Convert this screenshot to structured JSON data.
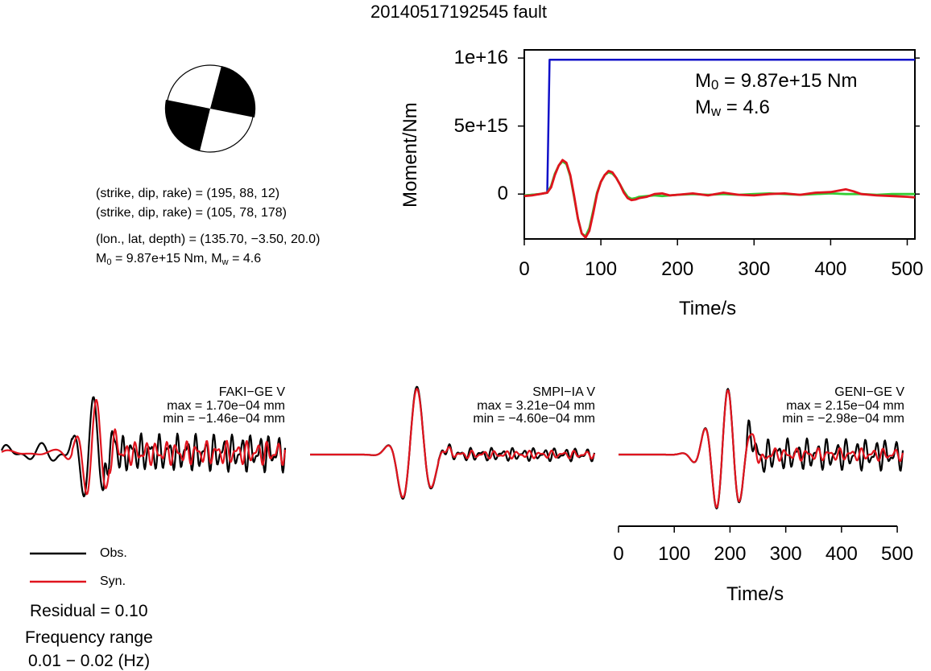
{
  "title": "20140517192545 fault",
  "params": {
    "line1": "(strike, dip, rake) = (195, 88, 12)",
    "line2": "(strike, dip, rake) = (105, 78, 178)",
    "line3": "(lon., lat, depth) = (135.70, −3.50, 20.0)",
    "m0_label": "M",
    "m0_sub": "0",
    "m0_value": " = 9.87e+15 Nm, M",
    "mw_sub": "w",
    "mw_value": " = 4.6"
  },
  "colors": {
    "obs": "#000000",
    "syn": "#e0141e",
    "moment": "#1010c8",
    "rate_green": "#33cc33"
  },
  "chart_data": [
    {
      "type": "line",
      "ylabel": "Moment/Nm",
      "xlabel": "Time/s",
      "xlim": [
        0,
        510
      ],
      "ylim": [
        -3300000000000000.0,
        1.06e+16
      ],
      "xticks": [
        "0",
        "100",
        "200",
        "300",
        "400",
        "500"
      ],
      "yticks": [
        "1e+16",
        "5e+15",
        "0"
      ],
      "annot_m0": "M",
      "annot_m0_sub": "0",
      "annot_m0_val": " = 9.87e+15 Nm",
      "annot_mw": "M",
      "annot_mw_sub": "w",
      "annot_mw_val": " = 4.6",
      "series": [
        {
          "x": [
            0,
            20,
            30,
            33,
            38,
            510
          ],
          "y": [
            -100000000000000.0,
            0,
            100000000000000.0,
            9870000000000000.0,
            9870000000000000.0,
            9870000000000000.0
          ]
        },
        {
          "x": [
            0,
            10,
            20,
            25,
            30,
            35,
            40,
            45,
            50,
            55,
            60,
            65,
            70,
            75,
            80,
            85,
            90,
            95,
            100,
            105,
            110,
            115,
            120,
            125,
            130,
            135,
            140,
            145,
            150,
            160,
            170,
            180,
            190,
            200,
            220,
            240,
            260,
            280,
            300,
            320,
            340,
            360,
            380,
            400,
            420,
            440,
            460,
            480,
            500,
            510
          ],
          "y": [
            -100000000000000.0,
            -50000000000000.0,
            0,
            50000000000000.0,
            100000000000000.0,
            600000000000000.0,
            1500000000000000.0,
            2100000000000000.0,
            2400000000000000.0,
            2200000000000000.0,
            1300000000000000.0,
            -200000000000000.0,
            -1800000000000000.0,
            -2900000000000000.0,
            -3100000000000000.0,
            -2500000000000000.0,
            -1200000000000000.0,
            100000000000000.0,
            900000000000000.0,
            1400000000000000.0,
            1600000000000000.0,
            1500000000000000.0,
            1200000000000000.0,
            700000000000000.0,
            200000000000000.0,
            -200000000000000.0,
            -350000000000000.0,
            -300000000000000.0,
            -200000000000000.0,
            -150000000000000.0,
            -100000000000000.0,
            -150000000000000.0,
            -100000000000000.0,
            -50000000000000.0,
            0,
            -50000000000000.0,
            0,
            -50000000000000.0,
            0,
            50000000000000.0,
            0,
            -50000000000000.0,
            0,
            50000000000000.0,
            0,
            0,
            -50000000000000.0,
            0,
            0,
            0
          ]
        },
        {
          "x": [
            0,
            10,
            20,
            25,
            30,
            35,
            40,
            45,
            50,
            55,
            60,
            65,
            70,
            75,
            80,
            85,
            90,
            95,
            100,
            105,
            110,
            115,
            120,
            125,
            130,
            135,
            140,
            145,
            150,
            160,
            170,
            180,
            190,
            200,
            220,
            240,
            260,
            280,
            300,
            320,
            340,
            360,
            380,
            400,
            410,
            420,
            430,
            440,
            460,
            480,
            500,
            510
          ],
          "y": [
            -150000000000000.0,
            -100000000000000.0,
            0,
            50000000000000.0,
            100000000000000.0,
            500000000000000.0,
            1400000000000000.0,
            2100000000000000.0,
            2500000000000000.0,
            2300000000000000.0,
            1400000000000000.0,
            -100000000000000.0,
            -1800000000000000.0,
            -2900000000000000.0,
            -3200000000000000.0,
            -2700000000000000.0,
            -1400000000000000.0,
            0,
            900000000000000.0,
            1400000000000000.0,
            1700000000000000.0,
            1600000000000000.0,
            1200000000000000.0,
            700000000000000.0,
            100000000000000.0,
            -300000000000000.0,
            -450000000000000.0,
            -400000000000000.0,
            -300000000000000.0,
            -200000000000000.0,
            0,
            50000000000000.0,
            -100000000000000.0,
            -50000000000000.0,
            50000000000000.0,
            -100000000000000.0,
            100000000000000.0,
            -50000000000000.0,
            -100000000000000.0,
            0,
            50000000000000.0,
            -50000000000000.0,
            100000000000000.0,
            150000000000000.0,
            250000000000000.0,
            350000000000000.0,
            200000000000000.0,
            0,
            -100000000000000.0,
            -150000000000000.0,
            -200000000000000.0,
            -250000000000000.0
          ]
        }
      ]
    },
    {
      "type": "line",
      "station": "FAKI−GE V",
      "max": "max = 1.70e−04 mm",
      "min": "min = −1.46e−04 mm"
    },
    {
      "type": "line",
      "station": "SMPI−IA V",
      "max": "max = 3.21e−04 mm",
      "min": "min = −4.60e−04 mm"
    },
    {
      "type": "line",
      "station": "GENI−GE V",
      "max": "max = 2.15e−04 mm",
      "min": "min = −2.98e−04 mm",
      "xlabel": "Time/s",
      "xlim": [
        0,
        510
      ],
      "xticks": [
        "0",
        "100",
        "200",
        "300",
        "400",
        "500"
      ]
    }
  ],
  "legend": {
    "obs": "Obs.",
    "syn": "Syn."
  },
  "residual": "Residual = 0.10",
  "freq_label": "Frequency range",
  "freq_value": "0.01 − 0.02 (Hz)"
}
